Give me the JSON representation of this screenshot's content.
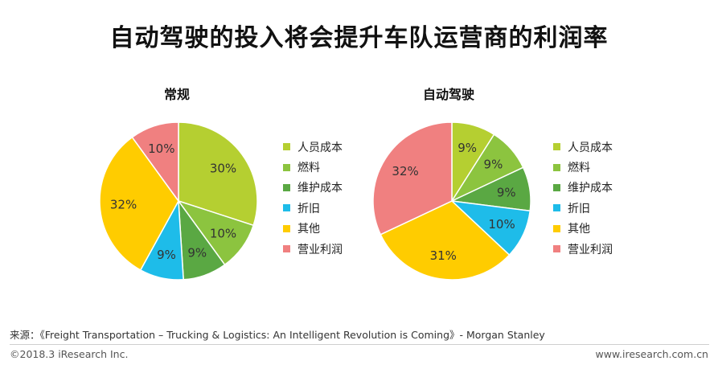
{
  "title": "自动驾驶的投入将会提升车队运营商的利润率",
  "colors": [
    "#b5cf31",
    "#8cc43f",
    "#5aa843",
    "#1ebce9",
    "#ffcc00",
    "#f08080"
  ],
  "chart_data": [
    {
      "type": "pie",
      "title": "常规",
      "categories": [
        "人员成本",
        "燃料",
        "维护成本",
        "折旧",
        "其他",
        "营业利润"
      ],
      "values": [
        30,
        10,
        9,
        9,
        32,
        10
      ],
      "labels": [
        "30%",
        "10%",
        "9%",
        "9%",
        "32%",
        "10%"
      ],
      "legend": "right"
    },
    {
      "type": "pie",
      "title": "自动驾驶",
      "categories": [
        "人员成本",
        "燃料",
        "维护成本",
        "折旧",
        "其他",
        "营业利润"
      ],
      "values": [
        9,
        9,
        9,
        10,
        31,
        32
      ],
      "labels": [
        "9%",
        "9%",
        "9%",
        "10%",
        "31%",
        "32%"
      ],
      "legend": "right"
    }
  ],
  "footer": {
    "source": "来源：《Freight Transportation – Trucking & Logistics: An Intelligent Revolution is Coming》- Morgan Stanley",
    "copyright": "©2018.3 iResearch Inc.",
    "website": "www.iresearch.com.cn"
  }
}
